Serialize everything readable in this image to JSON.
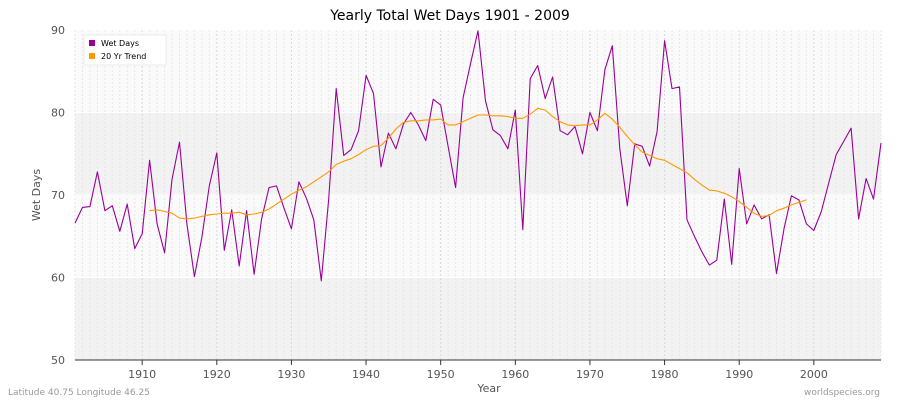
{
  "chart_data": {
    "type": "line",
    "title": "Yearly Total Wet Days 1901 - 2009",
    "xlabel": "Year",
    "ylabel": "Wet Days",
    "xlim": [
      1901,
      2009
    ],
    "ylim": [
      50,
      90
    ],
    "xticks": [
      1910,
      1920,
      1930,
      1940,
      1950,
      1960,
      1970,
      1980,
      1990,
      2000
    ],
    "yticks": [
      50,
      60,
      70,
      80,
      90
    ],
    "grid": true,
    "legend_position": "top-left",
    "series": [
      {
        "name": "Wet Days",
        "color": "#990099",
        "x": [
          1901,
          1902,
          1903,
          1904,
          1905,
          1906,
          1907,
          1908,
          1909,
          1910,
          1911,
          1912,
          1913,
          1914,
          1915,
          1916,
          1917,
          1918,
          1919,
          1920,
          1921,
          1922,
          1923,
          1924,
          1925,
          1926,
          1927,
          1928,
          1929,
          1930,
          1931,
          1932,
          1933,
          1934,
          1935,
          1936,
          1937,
          1938,
          1939,
          1940,
          1941,
          1942,
          1943,
          1944,
          1945,
          1946,
          1947,
          1948,
          1949,
          1950,
          1951,
          1952,
          1953,
          1954,
          1955,
          1956,
          1957,
          1958,
          1959,
          1960,
          1961,
          1962,
          1963,
          1964,
          1965,
          1966,
          1967,
          1968,
          1969,
          1970,
          1971,
          1972,
          1973,
          1974,
          1975,
          1976,
          1977,
          1978,
          1979,
          1980,
          1981,
          1982,
          1983,
          1984,
          1985,
          1986,
          1987,
          1988,
          1989,
          1990,
          1991,
          1992,
          1993,
          1994,
          1995,
          1996,
          1997,
          1998,
          1999,
          2000,
          2001,
          2002,
          2003,
          2004,
          2005,
          2006,
          2007,
          2008,
          2009
        ],
        "values": [
          66.6,
          68.5,
          68.6,
          72.8,
          68.1,
          68.7,
          65.6,
          68.9,
          63.5,
          65.3,
          74.2,
          66.5,
          63.0,
          71.9,
          76.4,
          66.5,
          60.1,
          64.9,
          71.1,
          75.1,
          63.3,
          68.2,
          61.4,
          68.1,
          60.4,
          67.1,
          70.9,
          71.1,
          68.4,
          65.9,
          71.6,
          69.6,
          67.0,
          59.6,
          69.5,
          82.9,
          74.8,
          75.5,
          77.8,
          84.5,
          82.3,
          73.4,
          77.5,
          75.6,
          78.6,
          80.0,
          78.5,
          76.6,
          81.6,
          80.9,
          75.9,
          70.9,
          81.8,
          85.9,
          89.9,
          81.4,
          77.9,
          77.2,
          75.6,
          80.3,
          65.8,
          84.1,
          85.7,
          81.7,
          84.3,
          77.8,
          77.3,
          78.3,
          75.0,
          80.0,
          77.8,
          85.2,
          88.1,
          75.6,
          68.7,
          76.2,
          75.9,
          73.5,
          77.7,
          88.7,
          82.9,
          83.1,
          67.0,
          65.0,
          63.1,
          61.5,
          62.1,
          69.5,
          61.6,
          73.2,
          66.5,
          68.8,
          67.1,
          67.6,
          60.5,
          65.9,
          69.9,
          69.4,
          66.5,
          65.7,
          68.0,
          71.5,
          74.9,
          76.5,
          78.1,
          67.1,
          72.0,
          69.5,
          76.3
        ]
      },
      {
        "name": "20 Yr Trend",
        "color": "#ff9900",
        "x": [
          1911,
          1912,
          1913,
          1914,
          1915,
          1916,
          1917,
          1918,
          1919,
          1920,
          1921,
          1922,
          1923,
          1924,
          1925,
          1926,
          1927,
          1928,
          1929,
          1930,
          1931,
          1932,
          1933,
          1934,
          1935,
          1936,
          1937,
          1938,
          1939,
          1940,
          1941,
          1942,
          1943,
          1944,
          1945,
          1946,
          1947,
          1948,
          1949,
          1950,
          1951,
          1952,
          1953,
          1954,
          1955,
          1956,
          1957,
          1958,
          1959,
          1960,
          1961,
          1962,
          1963,
          1964,
          1965,
          1966,
          1967,
          1968,
          1969,
          1970,
          1971,
          1972,
          1973,
          1974,
          1975,
          1976,
          1977,
          1978,
          1979,
          1980,
          1981,
          1982,
          1983,
          1984,
          1985,
          1986,
          1987,
          1988,
          1989,
          1990,
          1991,
          1992,
          1993,
          1994,
          1995,
          1996,
          1997,
          1998,
          1999
        ],
        "values": [
          68.1,
          68.2,
          68.0,
          67.8,
          67.2,
          67.1,
          67.2,
          67.4,
          67.6,
          67.7,
          67.8,
          67.8,
          67.9,
          67.6,
          67.7,
          67.9,
          68.3,
          68.9,
          69.5,
          70.1,
          70.6,
          71.0,
          71.6,
          72.2,
          72.8,
          73.7,
          74.1,
          74.4,
          74.9,
          75.5,
          75.9,
          76.0,
          76.9,
          78.0,
          78.8,
          79.0,
          79.0,
          79.1,
          79.1,
          79.2,
          78.5,
          78.5,
          78.9,
          79.3,
          79.7,
          79.7,
          79.6,
          79.6,
          79.5,
          79.3,
          79.3,
          79.8,
          80.5,
          80.3,
          79.5,
          78.9,
          78.5,
          78.4,
          78.5,
          78.5,
          79.1,
          79.9,
          79.2,
          78.2,
          77.1,
          76.1,
          75.2,
          74.8,
          74.4,
          74.2,
          73.7,
          73.2,
          72.7,
          71.9,
          71.2,
          70.6,
          70.5,
          70.2,
          69.8,
          69.2,
          68.5,
          67.8,
          67.4,
          67.5,
          68.1,
          68.4,
          68.8,
          69.1,
          69.4
        ]
      }
    ]
  },
  "footer": {
    "location": "Latitude 40.75 Longitude 46.25",
    "source": "worldspecies.org"
  }
}
